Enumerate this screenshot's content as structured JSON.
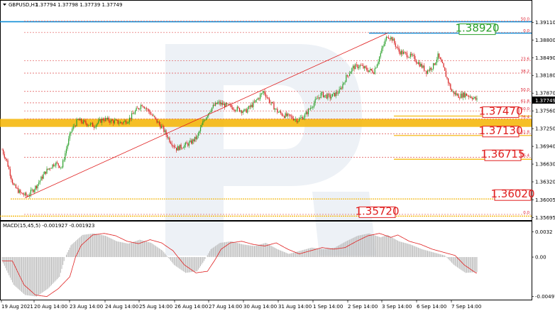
{
  "header": {
    "symbol": "GBPUSD,H1",
    "quote": "1.37794 1.37798 1.37739 1.37749"
  },
  "macd_label": "MACD(15,45,5) -0.001927 -0.001923",
  "colors": {
    "bull": "#2aa02a",
    "bear": "#d81e1e",
    "support": "#f4b400",
    "resistance": "#0f8ed6",
    "fib": "#e05050",
    "trend": "#e02020",
    "label_red": "#e02020",
    "label_green": "#2aa02a",
    "histogram": "#b8b8b8",
    "signal": "#e02020",
    "watermark": "#dfe6ef"
  },
  "chart_data": [
    {
      "type": "candlestick",
      "title": "GBPUSD,H1",
      "ylim": [
        1.3565,
        1.3935
      ],
      "y_ticks": [
        "1.39110",
        "1.38800",
        "1.38490",
        "1.38180",
        "1.37870",
        "1.37560",
        "1.37250",
        "1.36940",
        "1.36630",
        "1.36320",
        "1.36005",
        "1.35695"
      ],
      "x_ticks": [
        "19 Aug 2021",
        "20 Aug 14:00",
        "23 Aug 14:00",
        "24 Aug 14:00",
        "25 Aug 14:00",
        "26 Aug 14:00",
        "27 Aug 14:00",
        "30 Aug 14:00",
        "31 Aug 14:00",
        "1 Sep 14:00",
        "2 Sep 14:00",
        "3 Sep 14:00",
        "6 Sep 14:00",
        "7 Sep 14:00"
      ],
      "price_tag": "1.37749",
      "close_waypoints": [
        [
          0,
          1.3688
        ],
        [
          4,
          1.3668
        ],
        [
          10,
          1.3625
        ],
        [
          16,
          1.3612
        ],
        [
          22,
          1.3607
        ],
        [
          30,
          1.3625
        ],
        [
          38,
          1.365
        ],
        [
          46,
          1.3665
        ],
        [
          52,
          1.3658
        ],
        [
          56,
          1.369
        ],
        [
          60,
          1.372
        ],
        [
          66,
          1.374
        ],
        [
          72,
          1.3735
        ],
        [
          80,
          1.373
        ],
        [
          88,
          1.3742
        ],
        [
          96,
          1.3738
        ],
        [
          104,
          1.3735
        ],
        [
          110,
          1.374
        ],
        [
          116,
          1.3755
        ],
        [
          122,
          1.3768
        ],
        [
          128,
          1.3755
        ],
        [
          134,
          1.374
        ],
        [
          140,
          1.3725
        ],
        [
          146,
          1.3705
        ],
        [
          152,
          1.369
        ],
        [
          158,
          1.3695
        ],
        [
          164,
          1.37
        ],
        [
          170,
          1.371
        ],
        [
          176,
          1.374
        ],
        [
          182,
          1.376
        ],
        [
          188,
          1.377
        ],
        [
          196,
          1.3765
        ],
        [
          204,
          1.376
        ],
        [
          212,
          1.3755
        ],
        [
          220,
          1.377
        ],
        [
          228,
          1.379
        ],
        [
          234,
          1.377
        ],
        [
          240,
          1.3755
        ],
        [
          246,
          1.3748
        ],
        [
          252,
          1.3745
        ],
        [
          258,
          1.374
        ],
        [
          264,
          1.3748
        ],
        [
          270,
          1.3765
        ],
        [
          278,
          1.3785
        ],
        [
          286,
          1.378
        ],
        [
          294,
          1.379
        ],
        [
          300,
          1.3815
        ],
        [
          306,
          1.3832
        ],
        [
          312,
          1.3835
        ],
        [
          318,
          1.3828
        ],
        [
          324,
          1.3825
        ],
        [
          328,
          1.3845
        ],
        [
          332,
          1.3868
        ],
        [
          336,
          1.3888
        ],
        [
          340,
          1.3882
        ],
        [
          346,
          1.386
        ],
        [
          352,
          1.3855
        ],
        [
          358,
          1.385
        ],
        [
          364,
          1.3838
        ],
        [
          370,
          1.3825
        ],
        [
          376,
          1.3835
        ],
        [
          380,
          1.3852
        ],
        [
          384,
          1.3835
        ],
        [
          388,
          1.3812
        ],
        [
          392,
          1.379
        ],
        [
          398,
          1.3782
        ],
        [
          404,
          1.3785
        ],
        [
          410,
          1.378
        ],
        [
          414,
          1.3775
        ]
      ],
      "levels": [
        {
          "name": "support",
          "value": 1.3747,
          "label": "1.37470",
          "color": "#f4b400"
        },
        {
          "name": "support",
          "value": 1.3713,
          "label": "1.37130",
          "color": "#f4b400"
        },
        {
          "name": "support",
          "value": 1.36715,
          "label": "1.36715",
          "color": "#f4b400"
        },
        {
          "name": "support",
          "value": 1.3602,
          "label": "1.36020",
          "color": "#f4b400"
        },
        {
          "name": "support",
          "value": 1.3572,
          "label": "1.35720",
          "color": "#f4b400"
        },
        {
          "name": "resistance",
          "value": 1.3892,
          "label": "1.38920",
          "color": "#0f8ed6"
        },
        {
          "name": "resistance",
          "value": 1.3912,
          "label": "",
          "color": "#0f8ed6"
        }
      ],
      "support_band": [
        1.3728,
        1.3742
      ],
      "fib_levels": [
        {
          "label": "0.0",
          "value": 1.3893
        },
        {
          "label": "50.0",
          "value": 1.3913
        },
        {
          "label": "23.6",
          "value": 1.3844
        },
        {
          "label": "38.2",
          "value": 1.3822
        },
        {
          "label": "50.0",
          "value": 1.379
        },
        {
          "label": "61.8",
          "value": 1.377
        },
        {
          "label": "76.4",
          "value": 1.3742
        },
        {
          "label": "50.0",
          "value": 1.3756
        },
        {
          "label": "61.8",
          "value": 1.3716
        },
        {
          "label": "76.4",
          "value": 1.3675
        },
        {
          "label": "0.0",
          "value": 1.3575
        }
      ],
      "trendline": {
        "from": [
          20,
          1.3604
        ],
        "to": [
          336,
          1.3892
        ]
      }
    },
    {
      "type": "bar",
      "title": "MACD(15,45,5) -0.001927 -0.001923",
      "ylim": [
        -0.0053,
        0.0036
      ],
      "y_ticks": [
        "0.0032",
        "0.00",
        "-0.004977"
      ],
      "series": [
        {
          "name": "MACD",
          "values_waypoints": [
            [
              0,
              -0.0005
            ],
            [
              10,
              -0.0035
            ],
            [
              20,
              -0.0048
            ],
            [
              30,
              -0.005
            ],
            [
              40,
              -0.004
            ],
            [
              50,
              -0.0025
            ],
            [
              55,
              0.0
            ],
            [
              60,
              0.0015
            ],
            [
              70,
              0.0028
            ],
            [
              80,
              0.003
            ],
            [
              90,
              0.0027
            ],
            [
              100,
              0.002
            ],
            [
              110,
              0.0017
            ],
            [
              120,
              0.0022
            ],
            [
              130,
              0.0018
            ],
            [
              140,
              0.0008
            ],
            [
              150,
              -0.001
            ],
            [
              160,
              -0.002
            ],
            [
              170,
              -0.0018
            ],
            [
              176,
              -0.0005
            ],
            [
              182,
              0.001
            ],
            [
              190,
              0.0018
            ],
            [
              200,
              0.002
            ],
            [
              210,
              0.0016
            ],
            [
              220,
              0.0014
            ],
            [
              230,
              0.0018
            ],
            [
              240,
              0.001
            ],
            [
              250,
              0.0004
            ],
            [
              260,
              0.0008
            ],
            [
              270,
              0.0012
            ],
            [
              280,
              0.001
            ],
            [
              290,
              0.0012
            ],
            [
              300,
              0.002
            ],
            [
              310,
              0.0027
            ],
            [
              320,
              0.003
            ],
            [
              330,
              0.0025
            ],
            [
              336,
              0.0028
            ],
            [
              346,
              0.002
            ],
            [
              356,
              0.0016
            ],
            [
              366,
              0.001
            ],
            [
              376,
              0.0006
            ],
            [
              386,
              0.0002
            ],
            [
              394,
              -0.001
            ],
            [
              404,
              -0.002
            ],
            [
              414,
              -0.0019
            ]
          ]
        },
        {
          "name": "Signal",
          "lag": 3
        }
      ]
    }
  ]
}
